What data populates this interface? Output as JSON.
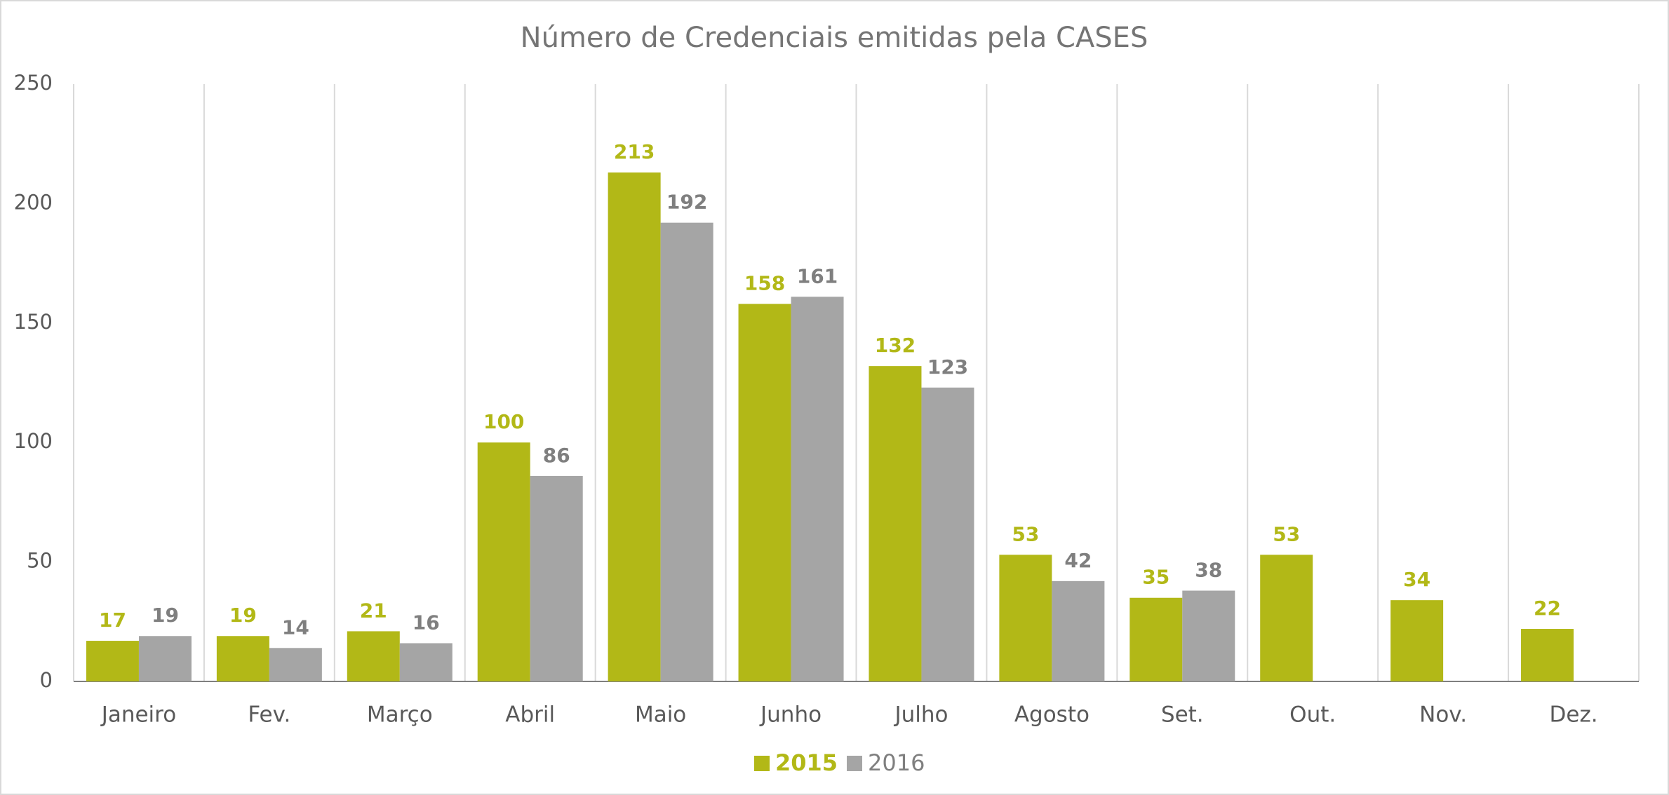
{
  "chart_data": {
    "type": "bar",
    "title": "Número de Credenciais emitidas pela CASES",
    "categories": [
      "Janeiro",
      "Fev.",
      "Março",
      "Abril",
      "Maio",
      "Junho",
      "Julho",
      "Agosto",
      "Set.",
      "Out.",
      "Nov.",
      "Dez."
    ],
    "series": [
      {
        "name": "2015",
        "color": "#b2b817",
        "values": [
          17,
          19,
          21,
          100,
          213,
          158,
          132,
          53,
          35,
          53,
          34,
          22
        ]
      },
      {
        "name": "2016",
        "color": "#a5a5a5",
        "values": [
          19,
          14,
          16,
          86,
          192,
          161,
          123,
          42,
          38,
          null,
          null,
          null
        ]
      }
    ],
    "ylim": [
      0,
      250
    ],
    "yticks": [
      0,
      50,
      100,
      150,
      200,
      250
    ],
    "legend": "bottom"
  }
}
